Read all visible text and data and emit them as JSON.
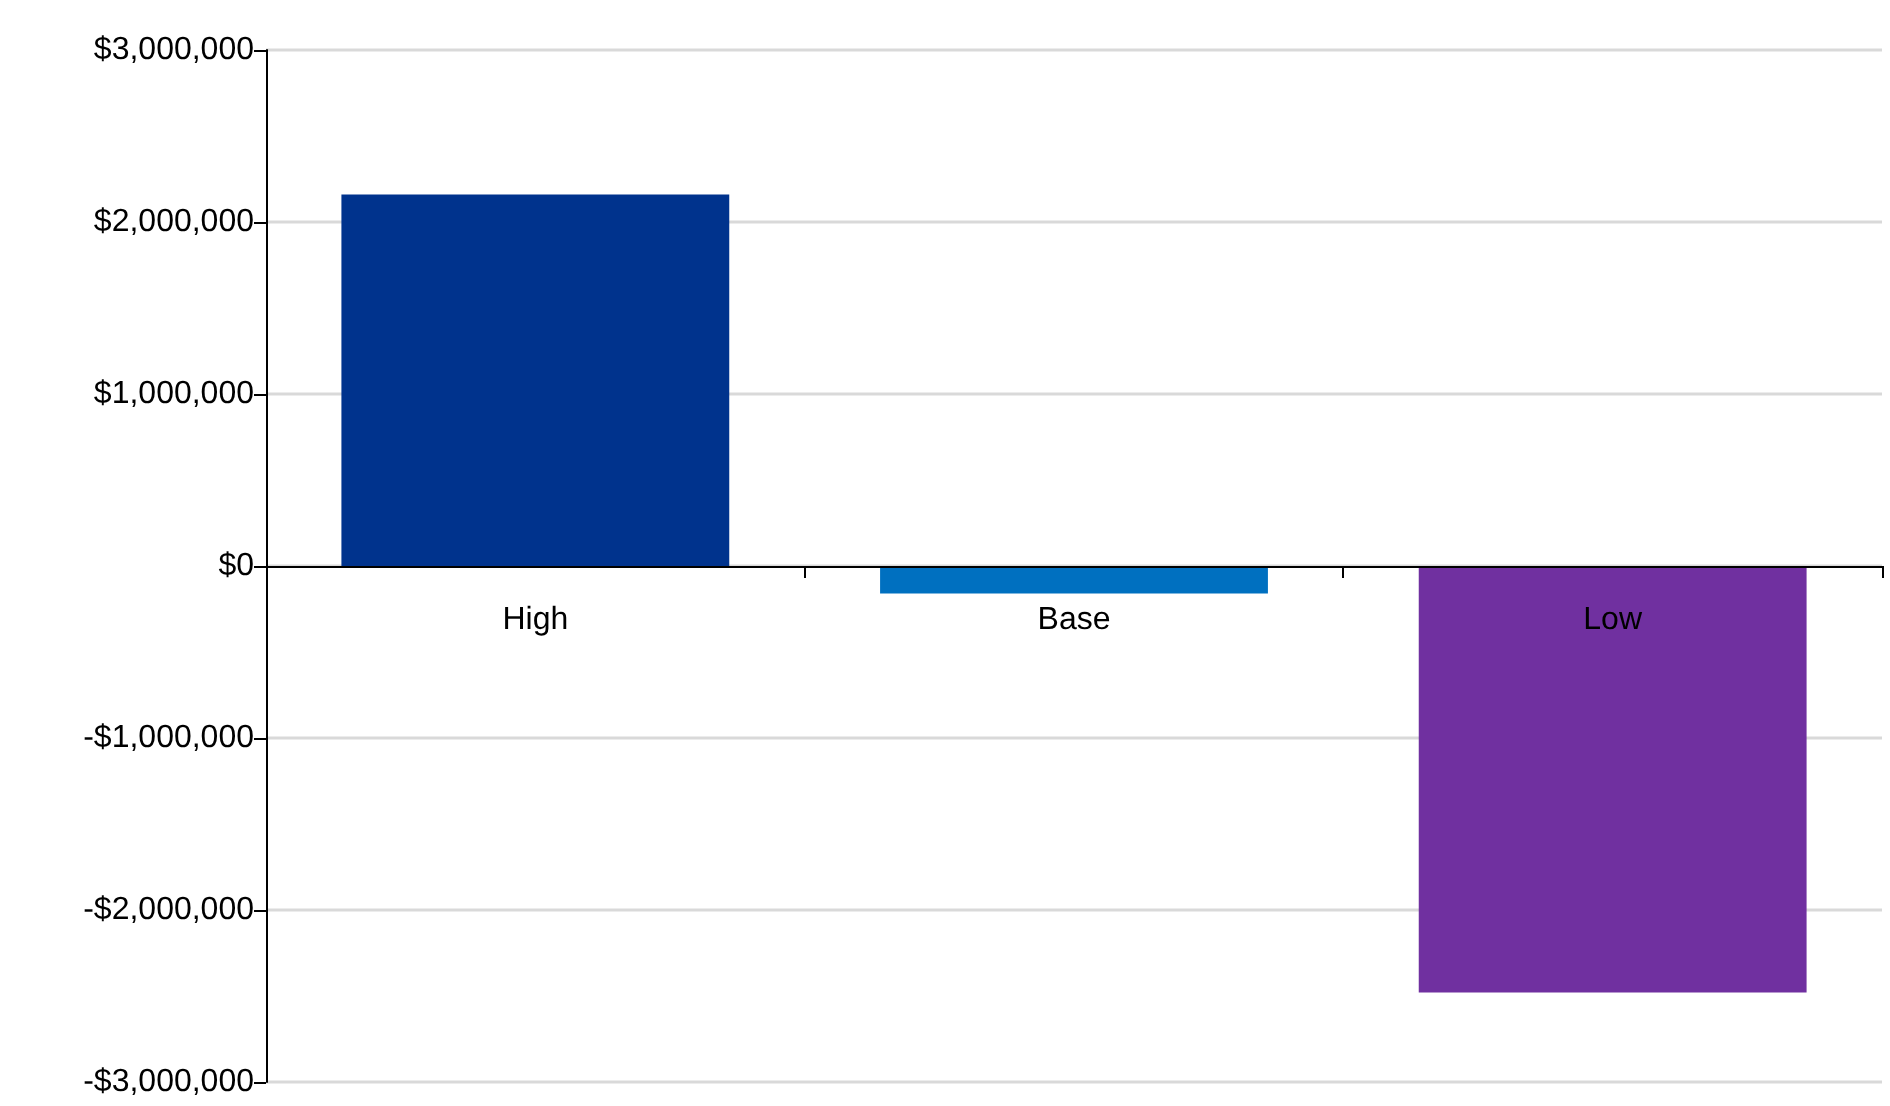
{
  "chart_data": {
    "type": "bar",
    "categories": [
      "High",
      "Base",
      "Low"
    ],
    "values": [
      2160000,
      -160000,
      -2480000
    ],
    "colors": [
      "#00338d",
      "#0070c0",
      "#7030a0"
    ],
    "ylim": [
      -3000000,
      3000000
    ],
    "yticks": [
      {
        "value": -3000000,
        "label": "-$3,000,000"
      },
      {
        "value": -2000000,
        "label": "-$2,000,000"
      },
      {
        "value": -1000000,
        "label": "-$1,000,000"
      },
      {
        "value": 0,
        "label": "$0"
      },
      {
        "value": 1000000,
        "label": "$1,000,000"
      },
      {
        "value": 2000000,
        "label": "$2,000,000"
      },
      {
        "value": 3000000,
        "label": "$3,000,000"
      }
    ],
    "grid": "y"
  }
}
